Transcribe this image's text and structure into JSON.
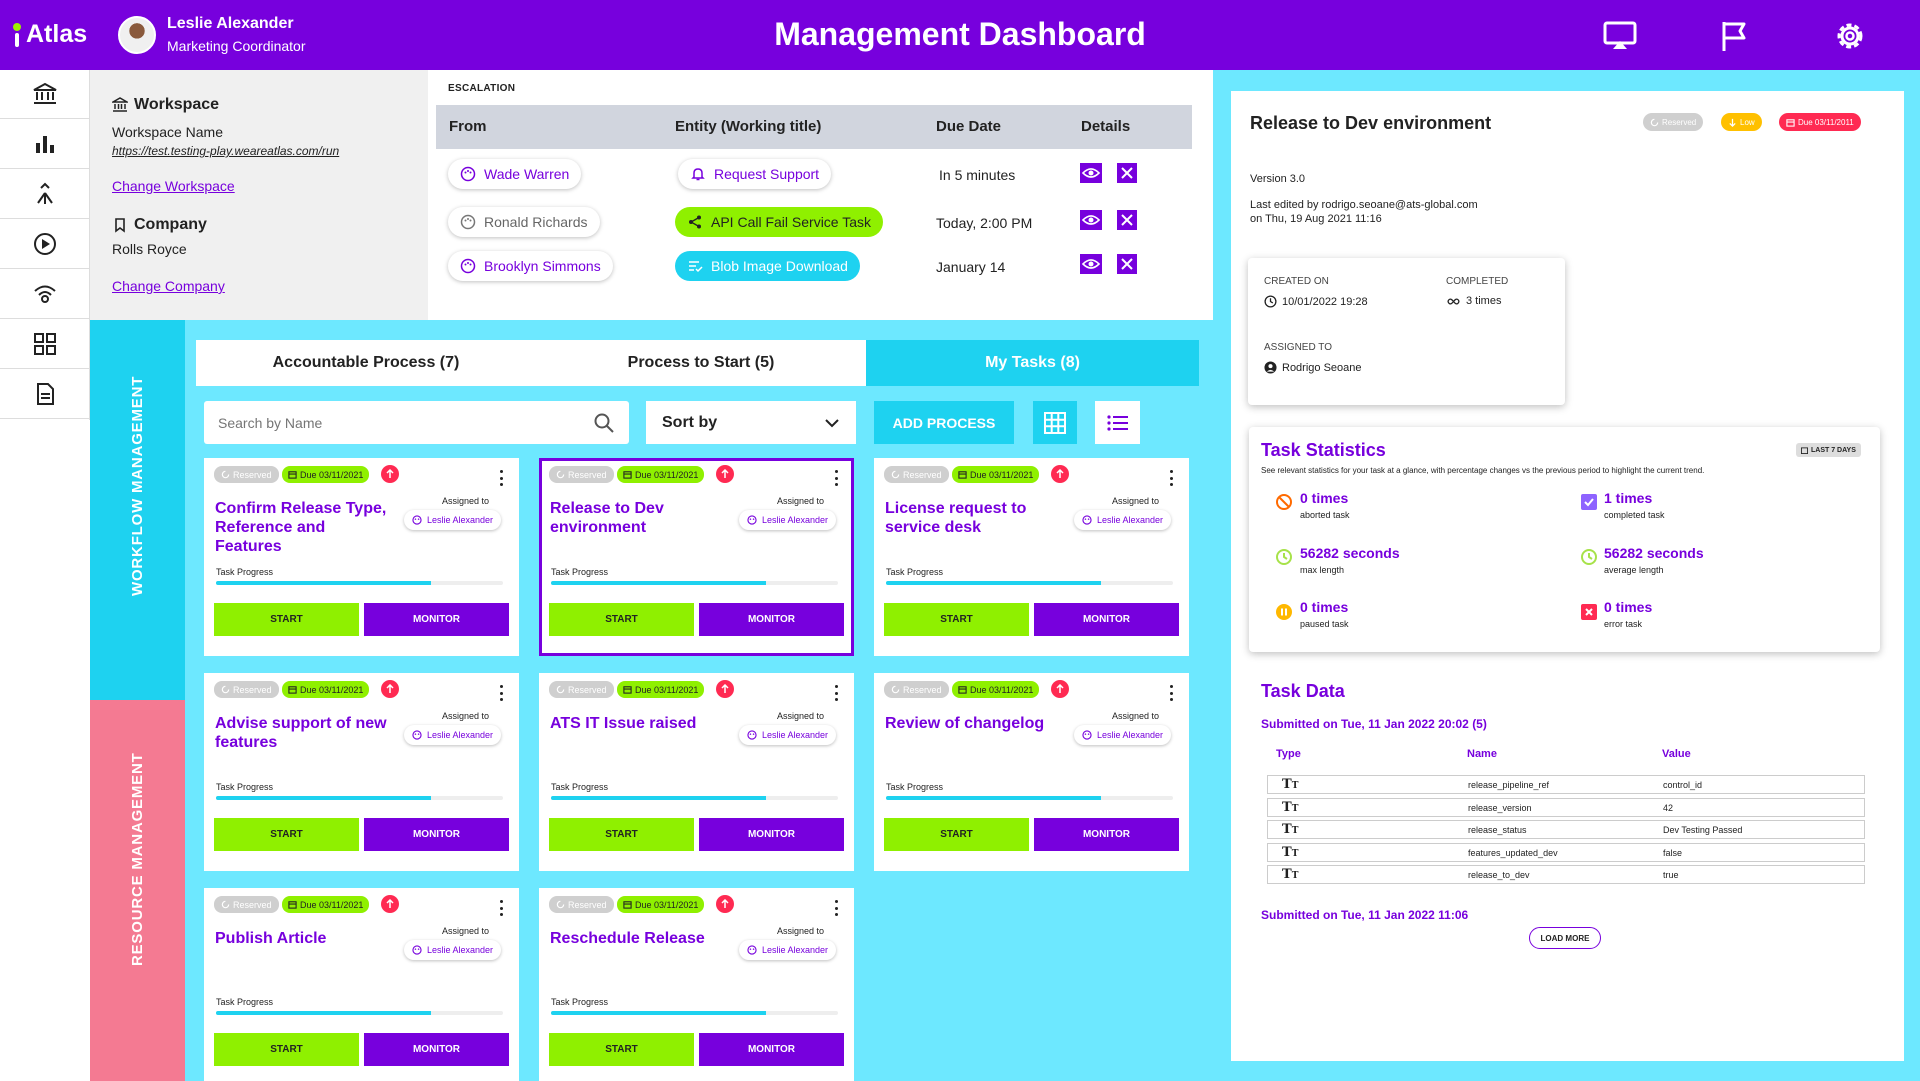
{
  "header": {
    "logo": "Atlas",
    "user_name": "Leslie Alexander",
    "user_role": "Marketing Coordinator",
    "title": "Management Dashboard",
    "icons": [
      "cast-icon",
      "flag-icon",
      "gear-icon"
    ]
  },
  "sidebar": {
    "icons": [
      "bank-icon",
      "bar-chart-icon",
      "merge-icon",
      "play-circle-icon",
      "broadcast-icon",
      "dashboard-icon",
      "document-icon"
    ]
  },
  "workspace": {
    "heading": "Workspace",
    "name_label": "Workspace Name",
    "url": "https://test.testing-play.weareatlas.com/run",
    "change_label": "Change Workspace"
  },
  "company": {
    "heading": "Company",
    "name": "Rolls Royce",
    "change_label": "Change Company"
  },
  "escalation": {
    "label": "ESCALATION",
    "columns": [
      "From",
      "Entity (Working title)",
      "Due Date",
      "Details"
    ],
    "rows": [
      {
        "from": "Wade Warren",
        "entity": "Request Support",
        "due": "In 5 minutes"
      },
      {
        "from": "Ronald Richards",
        "entity": "API Call Fail Service Task",
        "due": "Today, 2:00 PM"
      },
      {
        "from": "Brooklyn Simmons",
        "entity": "Blob Image Download",
        "due": "January 14"
      }
    ]
  },
  "bands": {
    "workflow": "WORKFLOW MANAGEMENT",
    "resource": "RESOURCE MANAGEMENT"
  },
  "tabs": [
    {
      "label": "Accountable Process (7)"
    },
    {
      "label": "Process to Start (5)"
    },
    {
      "label": "My Tasks (8)"
    }
  ],
  "toolbar": {
    "search_placeholder": "Search by Name",
    "sort_label": "Sort by",
    "add_label": "ADD PROCESS"
  },
  "card_common": {
    "reserved": "Reserved",
    "due": "Due 03/11/2021",
    "assigned_label": "Assigned to",
    "assignee": "Leslie Alexander",
    "progress_label": "Task Progress",
    "start": "START",
    "monitor": "MONITOR"
  },
  "cards": [
    {
      "title": "Confirm Release Type, Reference and Features",
      "progress": 0.75
    },
    {
      "title": "Release to Dev environment",
      "progress": 0.75
    },
    {
      "title": "License request to service desk",
      "progress": 0.75
    },
    {
      "title": "Advise support of new features",
      "progress": 0.75
    },
    {
      "title": "ATS IT Issue raised",
      "progress": 0.75
    },
    {
      "title": "Review of changelog",
      "progress": 0.75
    },
    {
      "title": "Publish Article",
      "progress": 0.75
    },
    {
      "title": "Reschedule Release",
      "progress": 0.75
    }
  ],
  "detail": {
    "title": "Release to Dev environment",
    "tag_reserved": "Reserved",
    "tag_low": "Low",
    "tag_due": "Due 03/11/2011",
    "version": "Version 3.0",
    "last_edited_1": "Last edited by rodrigo.seoane@ats-global.com",
    "last_edited_2": "on Thu, 19 Aug 2021 11:16",
    "created_label": "CREATED ON",
    "created_value": "10/01/2022 19:28",
    "completed_label": "COMPLETED",
    "completed_value": "3 times",
    "assigned_label": "ASSIGNED TO",
    "assigned_value": "Rodrigo Seoane"
  },
  "stats": {
    "title": "Task Statistics",
    "badge": "LAST 7 DAYS",
    "description": "See relevant statistics for your task at a glance, with percentage changes vs the previous period to highlight the current trend.",
    "items": [
      {
        "value": "0 times",
        "label": "aborted task"
      },
      {
        "value": "1 times",
        "label": "completed task"
      },
      {
        "value": "56282 seconds",
        "label": "max length"
      },
      {
        "value": "56282 seconds",
        "label": "average length"
      },
      {
        "value": "0 times",
        "label": "paused task"
      },
      {
        "value": "0 times",
        "label": "error task"
      }
    ],
    "colors": {
      "aborted": "#ff6a00",
      "completed": "#8e63ff",
      "length": "#a7e24a",
      "paused": "#ffb800",
      "error": "#ff2a52"
    }
  },
  "task_data": {
    "title": "Task Data",
    "submitted_1": "Submitted on Tue, 11 Jan 2022 20:02 (5)",
    "columns": [
      "Type",
      "Name",
      "Value"
    ],
    "rows": [
      {
        "name": "release_pipeline_ref",
        "value": "control_id"
      },
      {
        "name": "release_version",
        "value": "42"
      },
      {
        "name": "release_status",
        "value": "Dev Testing Passed"
      },
      {
        "name": "features_updated_dev",
        "value": "false"
      },
      {
        "name": "release_to_dev",
        "value": "true"
      }
    ],
    "submitted_2": "Submitted on Tue, 11 Jan 2022 11:06",
    "load_more": "LOAD MORE"
  },
  "colors": {
    "purple": "#7700dd",
    "cyan": "#1ed2f0",
    "light_cyan": "#6de8ff",
    "green": "#8ff000",
    "pink": "#f47a92",
    "red": "#ff2a52"
  }
}
